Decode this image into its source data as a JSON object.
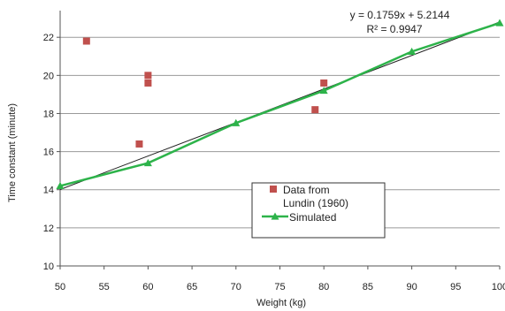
{
  "chart_data": {
    "type": "scatter",
    "xlabel": "Weight (kg)",
    "ylabel": "Time constant (minute)",
    "xlim": [
      50,
      100
    ],
    "ylim": [
      10,
      23.4
    ],
    "xticks": [
      50,
      55,
      60,
      65,
      70,
      75,
      80,
      85,
      90,
      95,
      100
    ],
    "yticks": [
      10,
      12,
      14,
      16,
      18,
      20,
      22
    ],
    "grid": "horizontal",
    "legend_position": "bottom-right",
    "annotation": {
      "equation": "y = 0.1759x + 5.2144",
      "r2": "R² = 0.9947"
    },
    "series": [
      {
        "name": "Data from Lundin (1960)",
        "legend_lines": [
          "Data from",
          "Lundin (1960)"
        ],
        "style": "markers",
        "marker": "square",
        "color": "#c0504d",
        "points": [
          {
            "x": 53,
            "y": 21.8
          },
          {
            "x": 59,
            "y": 16.4
          },
          {
            "x": 60,
            "y": 20.0
          },
          {
            "x": 60,
            "y": 19.6
          },
          {
            "x": 79,
            "y": 18.2
          },
          {
            "x": 80,
            "y": 19.6
          }
        ]
      },
      {
        "name": "Simulated",
        "style": "line-markers",
        "marker": "triangle",
        "color": "#2db34a",
        "points": [
          {
            "x": 50,
            "y": 14.2
          },
          {
            "x": 60,
            "y": 15.4
          },
          {
            "x": 70,
            "y": 17.5
          },
          {
            "x": 80,
            "y": 19.2
          },
          {
            "x": 90,
            "y": 21.25
          },
          {
            "x": 100,
            "y": 22.75
          }
        ]
      }
    ],
    "trendline": {
      "slope": 0.1759,
      "intercept": 5.2144,
      "color": "#222222"
    }
  }
}
